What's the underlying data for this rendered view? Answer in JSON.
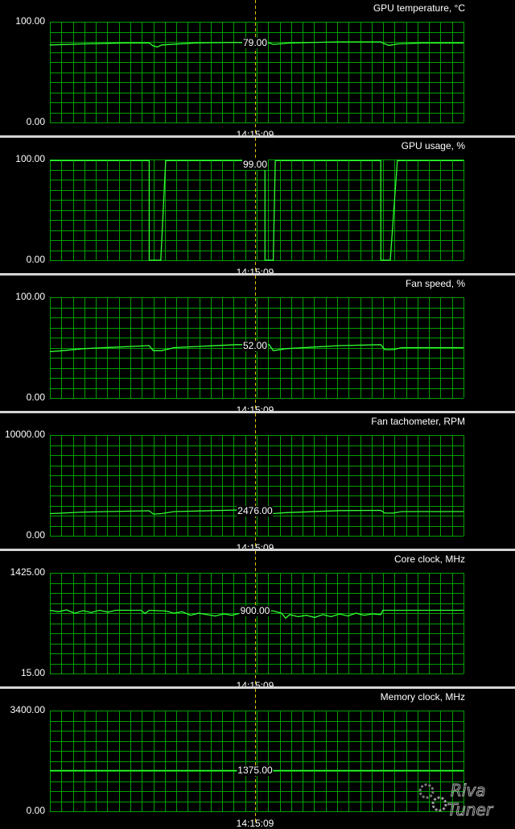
{
  "colors": {
    "background": "#000000",
    "grid": "#00a000",
    "line": "#33ff33",
    "cursor": "#e0c000",
    "separator": "#d4d4d4",
    "text": "#ffffff"
  },
  "cursor_time": "14:15:09",
  "graphs": [
    {
      "title": "GPU temperature, °C",
      "y_max_label": "100.00",
      "y_min_label": "0.00",
      "current_value": "79.00",
      "ymin": 0,
      "ymax": 100,
      "series": [
        [
          0,
          77
        ],
        [
          3,
          77.4
        ],
        [
          8,
          78
        ],
        [
          18,
          79
        ],
        [
          24,
          79
        ],
        [
          25,
          76
        ],
        [
          26,
          75
        ],
        [
          27,
          77
        ],
        [
          35,
          79
        ],
        [
          45,
          79.5
        ],
        [
          48,
          79
        ],
        [
          53,
          79
        ],
        [
          54,
          77.5
        ],
        [
          58,
          79
        ],
        [
          70,
          80
        ],
        [
          80,
          80
        ],
        [
          81,
          78
        ],
        [
          82,
          76.5
        ],
        [
          84,
          78
        ],
        [
          90,
          79
        ],
        [
          100,
          79
        ]
      ]
    },
    {
      "title": "GPU usage, %",
      "y_max_label": "100.00",
      "y_min_label": "0.00",
      "current_value": "99.00",
      "ymin": 0,
      "ymax": 100,
      "series": [
        [
          0,
          99
        ],
        [
          24,
          99
        ],
        [
          24.01,
          0
        ],
        [
          26.8,
          0
        ],
        [
          28,
          99
        ],
        [
          52,
          99
        ],
        [
          52.01,
          0
        ],
        [
          54,
          0
        ],
        [
          54.5,
          99
        ],
        [
          80,
          99
        ],
        [
          80.01,
          0
        ],
        [
          82.3,
          0
        ],
        [
          84,
          99
        ],
        [
          100,
          99
        ]
      ]
    },
    {
      "title": "Fan speed, %",
      "y_max_label": "100.00",
      "y_min_label": "0.00",
      "current_value": "52.00",
      "ymin": 0,
      "ymax": 100,
      "series": [
        [
          0,
          46
        ],
        [
          3,
          47
        ],
        [
          8,
          49
        ],
        [
          24,
          52
        ],
        [
          25,
          47
        ],
        [
          27,
          47
        ],
        [
          30,
          50
        ],
        [
          45,
          53
        ],
        [
          53,
          53
        ],
        [
          54,
          47
        ],
        [
          57,
          49
        ],
        [
          70,
          52
        ],
        [
          80,
          53
        ],
        [
          81,
          48
        ],
        [
          83,
          48
        ],
        [
          85,
          50
        ],
        [
          100,
          50
        ]
      ]
    },
    {
      "title": "Fan tachometer, RPM",
      "y_max_label": "10000.00",
      "y_min_label": "0.00",
      "current_value": "2476.00",
      "ymin": 0,
      "ymax": 10000,
      "series": [
        [
          0,
          2200
        ],
        [
          3,
          2250
        ],
        [
          8,
          2350
        ],
        [
          24,
          2476
        ],
        [
          25,
          2150
        ],
        [
          27,
          2200
        ],
        [
          30,
          2400
        ],
        [
          45,
          2550
        ],
        [
          53,
          2500
        ],
        [
          54,
          2200
        ],
        [
          57,
          2300
        ],
        [
          70,
          2500
        ],
        [
          80,
          2520
        ],
        [
          81,
          2250
        ],
        [
          83,
          2250
        ],
        [
          85,
          2400
        ],
        [
          100,
          2400
        ]
      ]
    },
    {
      "title": "Core clock, MHz",
      "y_max_label": "1425.00",
      "y_min_label": "15.00",
      "current_value": "900.00",
      "ymin": 15,
      "ymax": 1425,
      "series": [
        [
          0,
          900
        ],
        [
          2,
          880
        ],
        [
          4,
          905
        ],
        [
          6,
          860
        ],
        [
          8,
          895
        ],
        [
          10,
          870
        ],
        [
          12,
          900
        ],
        [
          14,
          875
        ],
        [
          16,
          900
        ],
        [
          22,
          900
        ],
        [
          23,
          855
        ],
        [
          24,
          900
        ],
        [
          28,
          890
        ],
        [
          30,
          860
        ],
        [
          32,
          880
        ],
        [
          34,
          830
        ],
        [
          36,
          860
        ],
        [
          38,
          840
        ],
        [
          40,
          820
        ],
        [
          42,
          850
        ],
        [
          44,
          830
        ],
        [
          46,
          860
        ],
        [
          48,
          870
        ],
        [
          50,
          880
        ],
        [
          52,
          900
        ],
        [
          54,
          890
        ],
        [
          56,
          860
        ],
        [
          57,
          790
        ],
        [
          58,
          840
        ],
        [
          60,
          810
        ],
        [
          62,
          830
        ],
        [
          64,
          800
        ],
        [
          66,
          840
        ],
        [
          68,
          810
        ],
        [
          70,
          850
        ],
        [
          72,
          820
        ],
        [
          74,
          860
        ],
        [
          76,
          830
        ],
        [
          78,
          850
        ],
        [
          80,
          840
        ],
        [
          80.5,
          900
        ],
        [
          100,
          900
        ]
      ]
    },
    {
      "title": "Memory clock, MHz",
      "y_max_label": "3400.00",
      "y_min_label": "0.00",
      "current_value": "1375.00",
      "ymin": 0,
      "ymax": 3400,
      "series": [
        [
          0,
          1375
        ],
        [
          100,
          1375
        ]
      ]
    }
  ],
  "logo": {
    "line1": "Riva",
    "line2": "Tuner"
  }
}
